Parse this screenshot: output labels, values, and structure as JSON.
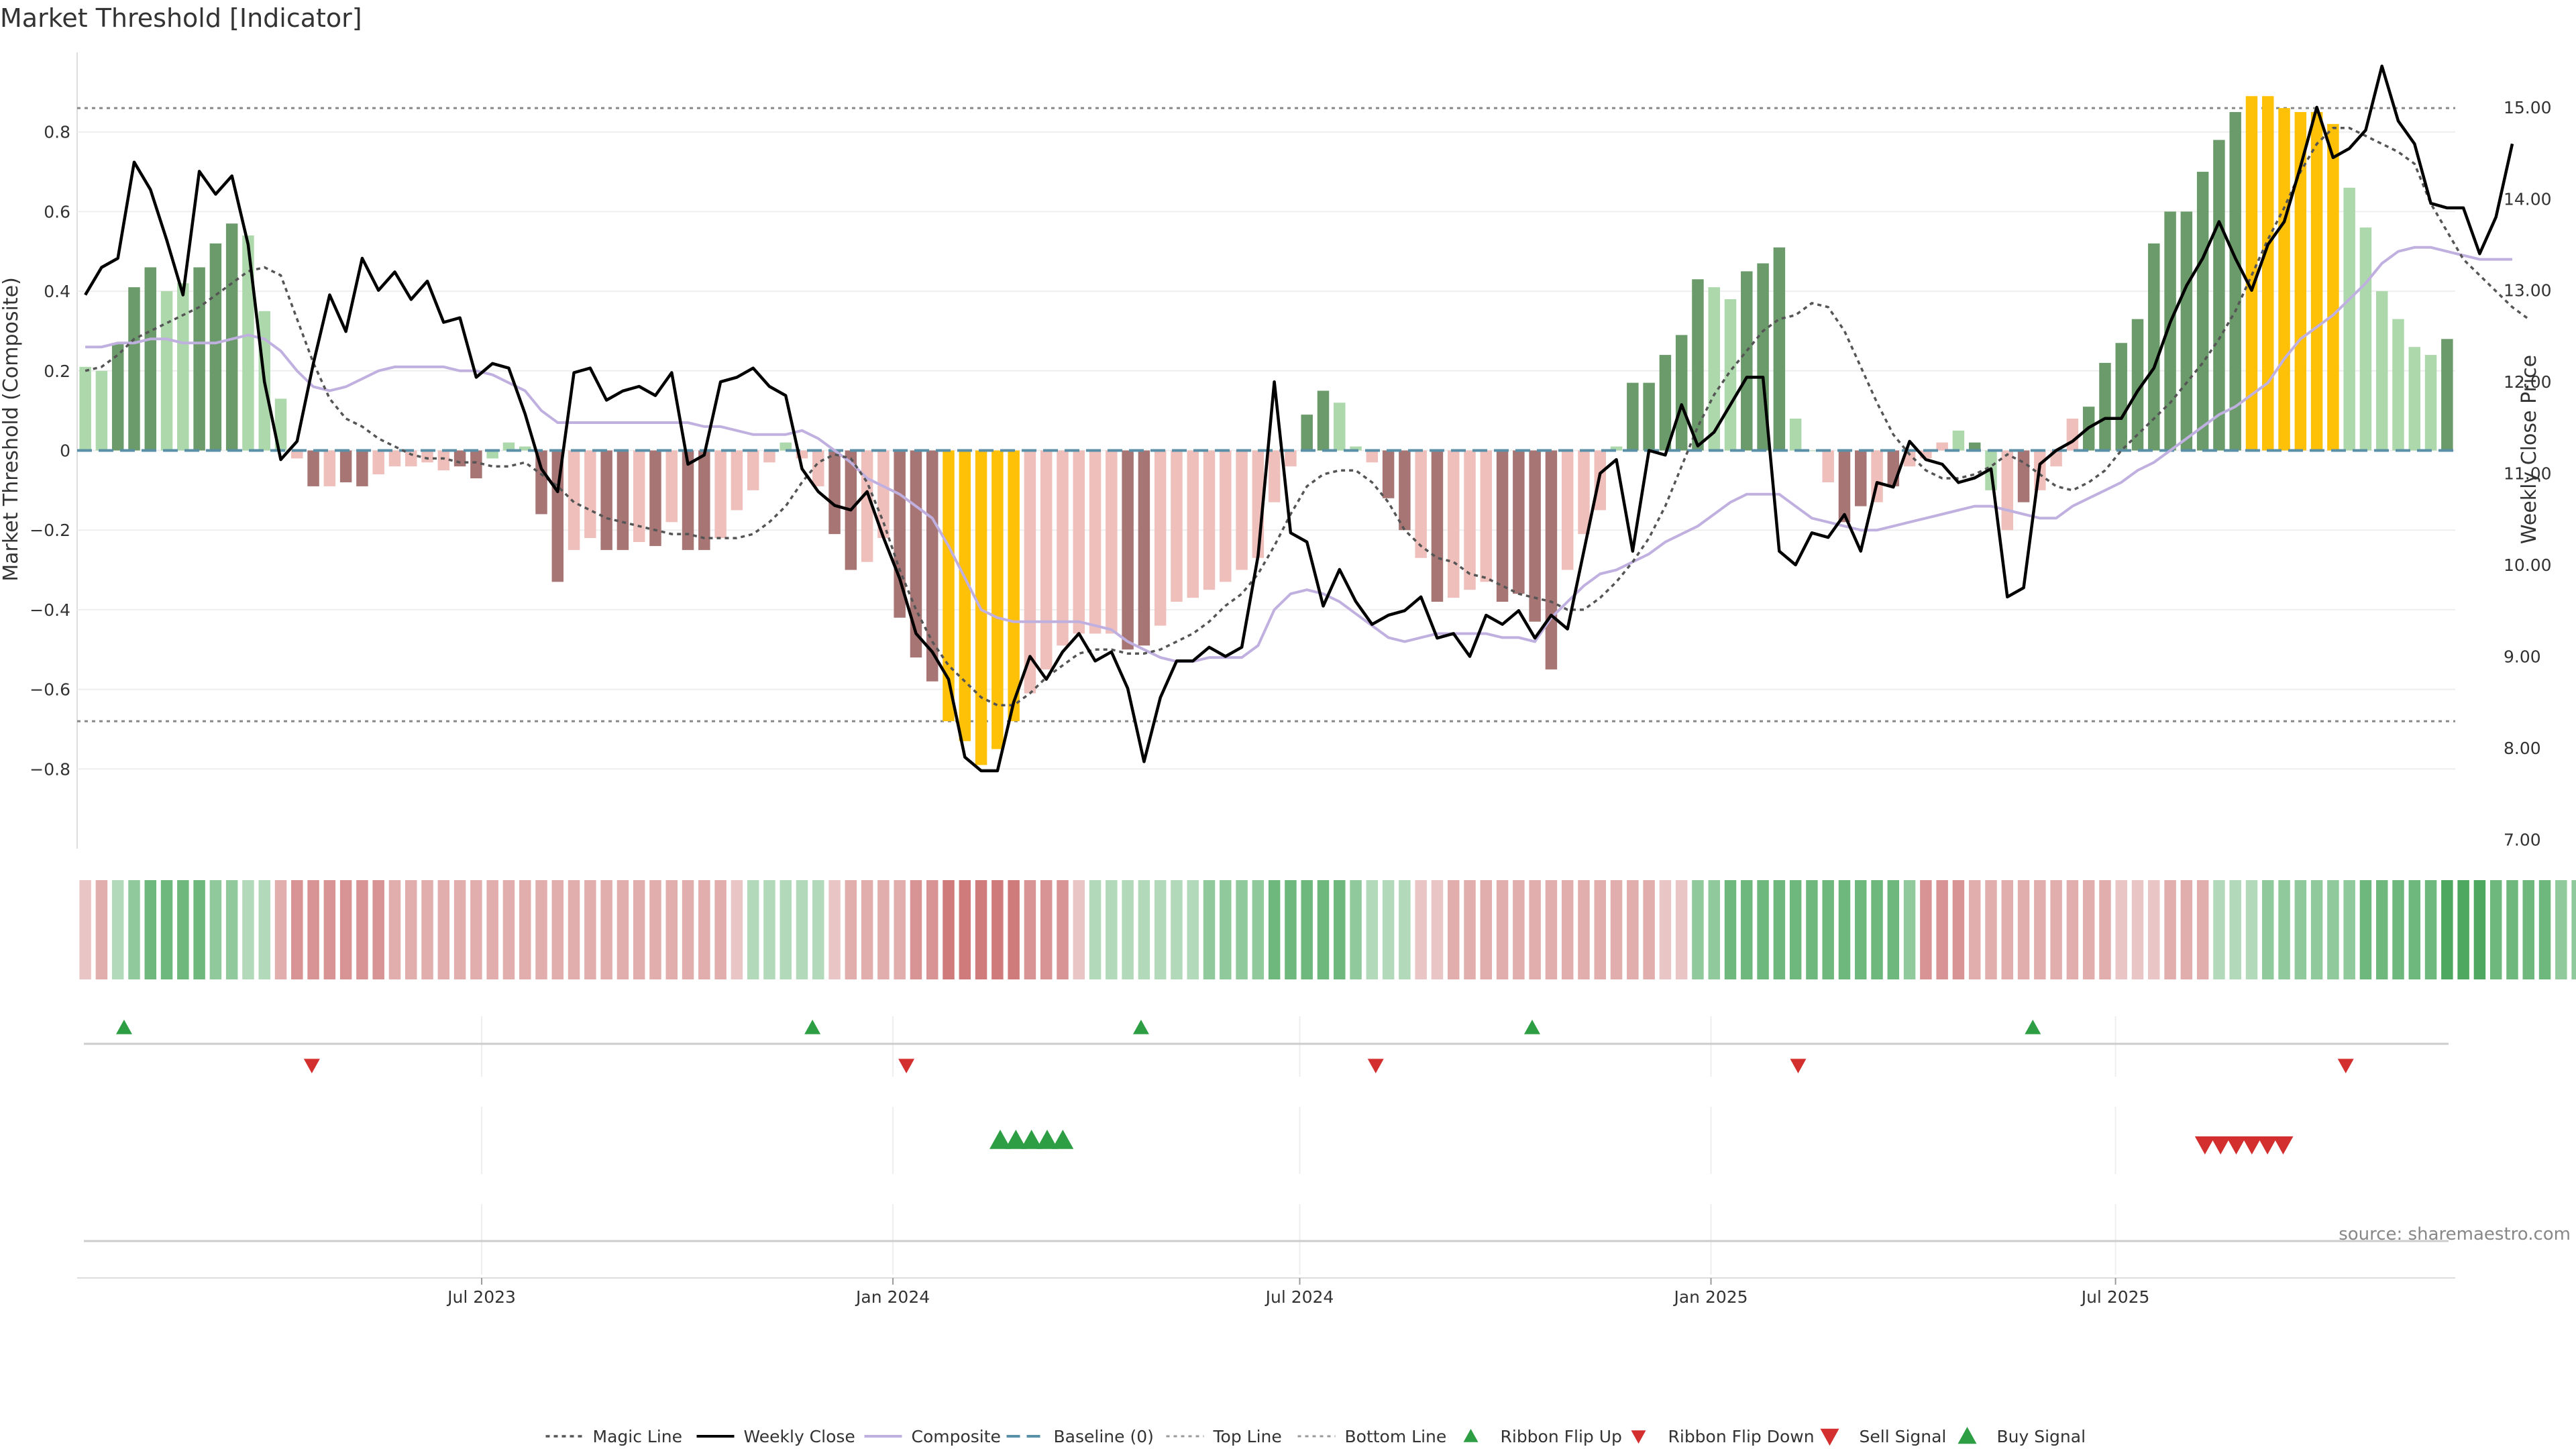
{
  "chart_data": {
    "type": "bar",
    "title": "Market Threshold [Indicator]",
    "ylabel_left": "Market Threshold (Composite)",
    "ylabel_right": "Weekly Close Price",
    "source_note": "source: sharemaestro.com",
    "left_axis": {
      "range": [
        -1.0,
        1.0
      ],
      "ticks": [
        0.8,
        0.6,
        0.4,
        0.2,
        0,
        -0.2,
        -0.4,
        -0.6,
        -0.8
      ],
      "tick_labels": [
        "0.8",
        "0.6",
        "0.4",
        "0.2",
        "0",
        "−0.2",
        "−0.4",
        "−0.6",
        "−0.8"
      ]
    },
    "right_axis": {
      "range": [
        6.9,
        15.6
      ],
      "ticks": [
        15,
        14,
        13,
        12,
        11,
        10,
        9,
        8,
        7
      ],
      "tick_labels": [
        "15.00",
        "14.00",
        "13.00",
        "12.00",
        "11.00",
        "10.00",
        "9.00",
        "8.00",
        "7.00"
      ]
    },
    "x_axis": {
      "start": "2023-01-01",
      "end": "2025-11-30",
      "tick_dates": [
        "2023-07-01",
        "2024-01-01",
        "2024-07-01",
        "2025-01-01",
        "2025-07-01"
      ],
      "tick_labels": [
        "Jul 2023",
        "Jan 2024",
        "Jul 2024",
        "Jan 2025",
        "Jul 2025"
      ]
    },
    "top_line": 0.86,
    "bottom_line": -0.68,
    "colors": {
      "bull_strong": "#6b9b6b",
      "bull_light": "#acd8ac",
      "bear_strong": "#a87575",
      "bear_light": "#efbfbc",
      "extreme": "#ffc107",
      "weekly_close": "#000000",
      "magic_line": "#555555",
      "composite": "#c0b0e0",
      "baseline": "#5a8fa8",
      "buy": "#2e9e44",
      "sell": "#d32f2f",
      "ribbon_green": "#4ea85f",
      "ribbon_red": "#cf7b7b"
    },
    "composite_bars": [
      0.21,
      0.2,
      0.27,
      0.41,
      0.46,
      0.4,
      0.42,
      0.46,
      0.52,
      0.57,
      0.54,
      0.35,
      0.13,
      -0.02,
      -0.09,
      -0.09,
      -0.08,
      -0.09,
      -0.06,
      -0.04,
      -0.04,
      -0.03,
      -0.05,
      -0.04,
      -0.07,
      -0.02,
      0.02,
      0.01,
      -0.16,
      -0.33,
      -0.25,
      -0.22,
      -0.25,
      -0.25,
      -0.23,
      -0.24,
      -0.18,
      -0.25,
      -0.25,
      -0.22,
      -0.15,
      -0.1,
      -0.03,
      0.02,
      -0.02,
      -0.09,
      -0.21,
      -0.3,
      -0.28,
      -0.22,
      -0.42,
      -0.52,
      -0.58,
      -0.68,
      -0.73,
      -0.79,
      -0.75,
      -0.68,
      -0.61,
      -0.55,
      -0.49,
      -0.46,
      -0.46,
      -0.46,
      -0.5,
      -0.49,
      -0.44,
      -0.38,
      -0.37,
      -0.35,
      -0.33,
      -0.3,
      -0.27,
      -0.13,
      -0.04,
      0.09,
      0.15,
      0.12,
      0.01,
      -0.03,
      -0.12,
      -0.2,
      -0.27,
      -0.38,
      -0.37,
      -0.35,
      -0.33,
      -0.38,
      -0.36,
      -0.43,
      -0.55,
      -0.3,
      -0.21,
      -0.15,
      0.01,
      0.17,
      0.17,
      0.24,
      0.29,
      0.43,
      0.41,
      0.38,
      0.45,
      0.47,
      0.51,
      0.08,
      0.0,
      -0.08,
      -0.18,
      -0.14,
      -0.13,
      -0.09,
      -0.04,
      -0.02,
      0.02,
      0.05,
      0.02,
      -0.1,
      -0.2,
      -0.13,
      -0.1,
      -0.04,
      0.08,
      0.11,
      0.22,
      0.27,
      0.33,
      0.52,
      0.6,
      0.6,
      0.7,
      0.78,
      0.85,
      0.89,
      0.89,
      0.86,
      0.85,
      0.85,
      0.82,
      0.66,
      0.56,
      0.4,
      0.33,
      0.26,
      0.24,
      0.28
    ],
    "bar_categories": [
      "bull_light",
      "bull_light",
      "bull_strong",
      "bull_strong",
      "bull_strong",
      "bull_light",
      "bull_light",
      "bull_strong",
      "bull_strong",
      "bull_strong",
      "bull_light",
      "bull_light",
      "bull_light",
      "bear_light",
      "bear_strong",
      "bear_light",
      "bear_strong",
      "bear_strong",
      "bear_light",
      "bear_light",
      "bear_light",
      "bear_light",
      "bear_light",
      "bear_strong",
      "bear_strong",
      "bull_light",
      "bull_light",
      "bull_light",
      "bear_strong",
      "bear_strong",
      "bear_light",
      "bear_light",
      "bear_strong",
      "bear_strong",
      "bear_light",
      "bear_strong",
      "bear_light",
      "bear_strong",
      "bear_strong",
      "bear_light",
      "bear_light",
      "bear_light",
      "bear_light",
      "bull_light",
      "bear_light",
      "bear_light",
      "bear_strong",
      "bear_strong",
      "bear_light",
      "bear_light",
      "bear_strong",
      "bear_strong",
      "bear_strong",
      "extreme",
      "extreme",
      "extreme",
      "extreme",
      "extreme",
      "bear_light",
      "bear_light",
      "bear_light",
      "bear_light",
      "bear_light",
      "bear_light",
      "bear_strong",
      "bear_strong",
      "bear_light",
      "bear_light",
      "bear_light",
      "bear_light",
      "bear_light",
      "bear_light",
      "bear_light",
      "bear_light",
      "bear_light",
      "bull_strong",
      "bull_strong",
      "bull_light",
      "bull_light",
      "bear_light",
      "bear_strong",
      "bear_strong",
      "bear_light",
      "bear_strong",
      "bear_light",
      "bear_light",
      "bear_light",
      "bear_strong",
      "bear_strong",
      "bear_strong",
      "bear_strong",
      "bear_light",
      "bear_light",
      "bear_light",
      "bull_light",
      "bull_strong",
      "bull_strong",
      "bull_strong",
      "bull_strong",
      "bull_strong",
      "bull_light",
      "bull_light",
      "bull_strong",
      "bull_strong",
      "bull_strong",
      "bull_light",
      "bull_light",
      "bear_light",
      "bear_strong",
      "bear_strong",
      "bear_light",
      "bear_strong",
      "bear_light",
      "bear_light",
      "bear_light",
      "bull_light",
      "bull_strong",
      "bull_light",
      "bear_light",
      "bear_strong",
      "bear_light",
      "bear_light",
      "bear_light",
      "bull_strong",
      "bull_strong",
      "bull_strong",
      "bull_strong",
      "bull_strong",
      "bull_strong",
      "bull_strong",
      "bull_strong",
      "bull_strong",
      "bull_strong",
      "extreme",
      "extreme",
      "extreme",
      "extreme",
      "extreme",
      "extreme",
      "bull_light",
      "bull_light",
      "bull_light",
      "bull_light",
      "bull_light",
      "bull_light",
      "bull_strong"
    ],
    "ribbon": [
      -1,
      -2,
      1,
      2,
      3,
      3,
      3,
      3,
      2,
      2,
      1,
      1,
      -2,
      -3,
      -3,
      -3,
      -3,
      -3,
      -3,
      -2,
      -2,
      -2,
      -2,
      -2,
      -2,
      -2,
      -2,
      -2,
      -2,
      -2,
      -2,
      -2,
      -2,
      -2,
      -2,
      -2,
      -2,
      -2,
      -2,
      -2,
      -1,
      1,
      1,
      1,
      1,
      1,
      -1,
      -2,
      -2,
      -2,
      -2,
      -3,
      -3,
      -4,
      -4,
      -4,
      -4,
      -4,
      -3,
      -3,
      -3,
      -1,
      1,
      1,
      1,
      1,
      1,
      1,
      1,
      2,
      2,
      2,
      2,
      3,
      3,
      3,
      3,
      3,
      2,
      1,
      1,
      1,
      -1,
      -1,
      -2,
      -2,
      -2,
      -2,
      -2,
      -2,
      -2,
      -2,
      -2,
      -2,
      -2,
      -2,
      -2,
      -1,
      -1,
      2,
      2,
      3,
      3,
      3,
      3,
      3,
      3,
      3,
      3,
      3,
      3,
      3,
      2,
      -3,
      -3,
      -3,
      -2,
      -2,
      -2,
      -2,
      -2,
      -2,
      -2,
      -2,
      -2,
      -1,
      -1,
      -1,
      -2,
      -2,
      -2,
      1,
      1,
      1,
      2,
      2,
      2,
      2,
      2,
      2,
      3,
      3,
      3,
      3,
      3,
      4,
      4,
      4,
      3,
      3,
      3,
      3,
      2,
      2,
      -1,
      -2,
      -3,
      -3
    ],
    "weekly_close": [
      12.95,
      13.25,
      13.35,
      14.4,
      14.1,
      13.55,
      12.95,
      14.3,
      14.05,
      14.25,
      13.5,
      12.0,
      11.15,
      11.35,
      12.2,
      12.95,
      12.55,
      13.35,
      13.0,
      13.2,
      12.9,
      13.1,
      12.65,
      12.7,
      12.05,
      12.2,
      12.15,
      11.65,
      11.05,
      10.8,
      12.1,
      12.15,
      11.8,
      11.9,
      11.95,
      11.85,
      12.1,
      11.1,
      11.2,
      12.0,
      12.05,
      12.15,
      11.95,
      11.85,
      11.05,
      10.8,
      10.65,
      10.6,
      10.8,
      10.3,
      9.85,
      9.25,
      9.05,
      8.75,
      7.9,
      7.75,
      7.75,
      8.5,
      9.0,
      8.75,
      9.05,
      9.25,
      8.95,
      9.05,
      8.65,
      7.85,
      8.55,
      8.95,
      8.95,
      9.1,
      9.0,
      9.1,
      10.1,
      12.0,
      10.35,
      10.25,
      9.55,
      9.95,
      9.6,
      9.35,
      9.45,
      9.5,
      9.65,
      9.2,
      9.25,
      9.0,
      9.45,
      9.35,
      9.5,
      9.2,
      9.45,
      9.3,
      10.15,
      11.0,
      11.15,
      10.15,
      11.25,
      11.2,
      11.75,
      11.3,
      11.45,
      11.75,
      12.05,
      12.05,
      10.15,
      10.0,
      10.35,
      10.3,
      10.55,
      10.15,
      10.9,
      10.85,
      11.35,
      11.15,
      11.1,
      10.9,
      10.95,
      11.05,
      9.65,
      9.75,
      11.1,
      11.25,
      11.35,
      11.5,
      11.6,
      11.6,
      11.9,
      12.15,
      12.65,
      13.05,
      13.35,
      13.75,
      13.35,
      13.0,
      13.5,
      13.75,
      14.35,
      15.0,
      14.45,
      14.55,
      14.75,
      15.45,
      14.85,
      14.6,
      13.95,
      13.9,
      13.9,
      13.4,
      13.8,
      14.6
    ],
    "composite_line": [
      0.26,
      0.26,
      0.27,
      0.27,
      0.28,
      0.28,
      0.27,
      0.27,
      0.27,
      0.28,
      0.29,
      0.28,
      0.25,
      0.2,
      0.16,
      0.15,
      0.16,
      0.18,
      0.2,
      0.21,
      0.21,
      0.21,
      0.21,
      0.2,
      0.2,
      0.19,
      0.17,
      0.15,
      0.1,
      0.07,
      0.07,
      0.07,
      0.07,
      0.07,
      0.07,
      0.07,
      0.07,
      0.07,
      0.06,
      0.06,
      0.05,
      0.04,
      0.04,
      0.04,
      0.05,
      0.03,
      0.0,
      -0.03,
      -0.07,
      -0.09,
      -0.11,
      -0.14,
      -0.17,
      -0.24,
      -0.32,
      -0.4,
      -0.42,
      -0.43,
      -0.43,
      -0.43,
      -0.43,
      -0.43,
      -0.44,
      -0.45,
      -0.48,
      -0.5,
      -0.52,
      -0.53,
      -0.53,
      -0.52,
      -0.52,
      -0.52,
      -0.49,
      -0.4,
      -0.36,
      -0.35,
      -0.36,
      -0.38,
      -0.41,
      -0.44,
      -0.47,
      -0.48,
      -0.47,
      -0.46,
      -0.46,
      -0.46,
      -0.46,
      -0.47,
      -0.47,
      -0.48,
      -0.42,
      -0.38,
      -0.34,
      -0.31,
      -0.3,
      -0.28,
      -0.26,
      -0.23,
      -0.21,
      -0.19,
      -0.16,
      -0.13,
      -0.11,
      -0.11,
      -0.11,
      -0.14,
      -0.17,
      -0.18,
      -0.19,
      -0.2,
      -0.2,
      -0.19,
      -0.18,
      -0.17,
      -0.16,
      -0.15,
      -0.14,
      -0.14,
      -0.15,
      -0.16,
      -0.17,
      -0.17,
      -0.14,
      -0.12,
      -0.1,
      -0.08,
      -0.05,
      -0.03,
      0.0,
      0.03,
      0.06,
      0.09,
      0.11,
      0.14,
      0.17,
      0.23,
      0.28,
      0.31,
      0.34,
      0.38,
      0.42,
      0.47,
      0.5,
      0.51,
      0.51,
      0.5,
      0.49,
      0.48,
      0.48,
      0.48
    ],
    "magic_line": [
      0.2,
      0.21,
      0.24,
      0.28,
      0.3,
      0.32,
      0.34,
      0.36,
      0.39,
      0.42,
      0.45,
      0.46,
      0.44,
      0.33,
      0.22,
      0.13,
      0.08,
      0.06,
      0.03,
      0.01,
      -0.01,
      -0.02,
      -0.02,
      -0.03,
      -0.03,
      -0.04,
      -0.04,
      -0.03,
      -0.06,
      -0.09,
      -0.13,
      -0.15,
      -0.17,
      -0.18,
      -0.19,
      -0.2,
      -0.21,
      -0.21,
      -0.22,
      -0.22,
      -0.22,
      -0.21,
      -0.18,
      -0.14,
      -0.08,
      -0.03,
      -0.01,
      -0.02,
      -0.08,
      -0.18,
      -0.3,
      -0.4,
      -0.48,
      -0.54,
      -0.58,
      -0.62,
      -0.64,
      -0.64,
      -0.61,
      -0.57,
      -0.54,
      -0.51,
      -0.5,
      -0.5,
      -0.51,
      -0.51,
      -0.5,
      -0.48,
      -0.46,
      -0.43,
      -0.39,
      -0.36,
      -0.31,
      -0.24,
      -0.16,
      -0.09,
      -0.06,
      -0.05,
      -0.05,
      -0.08,
      -0.13,
      -0.2,
      -0.24,
      -0.27,
      -0.28,
      -0.31,
      -0.32,
      -0.34,
      -0.36,
      -0.37,
      -0.38,
      -0.4,
      -0.4,
      -0.37,
      -0.33,
      -0.28,
      -0.22,
      -0.14,
      -0.04,
      0.06,
      0.14,
      0.2,
      0.25,
      0.3,
      0.33,
      0.34,
      0.37,
      0.36,
      0.3,
      0.21,
      0.12,
      0.04,
      -0.01,
      -0.05,
      -0.07,
      -0.07,
      -0.06,
      -0.04,
      -0.01,
      -0.03,
      -0.06,
      -0.09,
      -0.1,
      -0.08,
      -0.05,
      0.0,
      0.04,
      0.08,
      0.12,
      0.17,
      0.22,
      0.28,
      0.35,
      0.44,
      0.53,
      0.61,
      0.7,
      0.77,
      0.81,
      0.81,
      0.79,
      0.77,
      0.75,
      0.72,
      0.62,
      0.55,
      0.48,
      0.44,
      0.4,
      0.36,
      0.33
    ],
    "ribbon_flip_up": [
      "2023-01-22",
      "2023-11-26",
      "2024-04-21",
      "2024-10-13",
      "2025-05-25"
    ],
    "ribbon_flip_down": [
      "2023-04-16",
      "2024-01-07",
      "2024-08-04",
      "2025-02-09",
      "2025-10-12"
    ],
    "buy_signal": [
      "2024-02-18",
      "2024-02-25",
      "2024-03-03",
      "2024-03-10",
      "2024-03-17"
    ],
    "sell_signal": [
      "2025-08-10",
      "2025-08-17",
      "2025-08-24",
      "2025-08-31",
      "2025-09-07",
      "2025-09-14"
    ],
    "legend": [
      {
        "label": "Magic Line",
        "kind": "dotted"
      },
      {
        "label": "Weekly Close",
        "kind": "line-black"
      },
      {
        "label": "Composite",
        "kind": "line-purple"
      },
      {
        "label": "Baseline (0)",
        "kind": "dashed-blue"
      },
      {
        "label": "Top Line",
        "kind": "dotted-light"
      },
      {
        "label": "Bottom Line",
        "kind": "dotted-light"
      },
      {
        "label": "Ribbon Flip Up",
        "kind": "tri-up-green"
      },
      {
        "label": "Ribbon Flip Down",
        "kind": "tri-down-red"
      },
      {
        "label": "Sell Signal",
        "kind": "tri-down-red-big"
      },
      {
        "label": "Buy Signal",
        "kind": "tri-up-green-big"
      }
    ]
  }
}
